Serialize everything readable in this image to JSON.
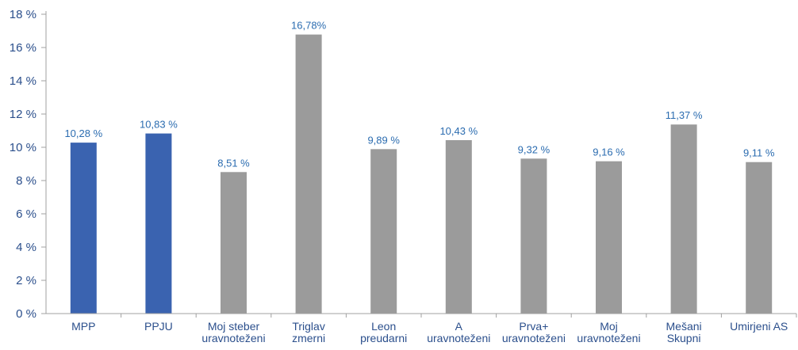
{
  "chart_data": {
    "type": "bar",
    "title": "",
    "xlabel": "",
    "ylabel": "",
    "ylim": [
      0,
      18
    ],
    "ytick_step": 2,
    "ytick_labels": [
      "0 %",
      "2 %",
      "4 %",
      "6 %",
      "8 %",
      "10 %",
      "12 %",
      "14 %",
      "16 %",
      "18 %"
    ],
    "categories": [
      [
        "MPP"
      ],
      [
        "PPJU"
      ],
      [
        "Moj steber",
        "uravnoteženi"
      ],
      [
        "Triglav",
        "zmerni"
      ],
      [
        "Leon",
        "preudarni"
      ],
      [
        "A",
        "uravnoteženi"
      ],
      [
        "Prva+",
        "uravnoteženi"
      ],
      [
        "Moj",
        "uravnoteženi"
      ],
      [
        "Mešani",
        "Skupni"
      ],
      [
        "Umirjeni AS"
      ]
    ],
    "values": [
      10.28,
      10.83,
      8.51,
      16.78,
      9.89,
      10.43,
      9.32,
      9.16,
      11.37,
      9.11
    ],
    "data_labels": [
      "10,28 %",
      "10,83 %",
      "8,51 %",
      "16,78%",
      "9,89 %",
      "10,43 %",
      "9,32 %",
      "9,16 %",
      "11,37 %",
      "9,11 %"
    ],
    "bar_colors": [
      "#3a63b0",
      "#3a63b0",
      "#9b9b9b",
      "#9b9b9b",
      "#9b9b9b",
      "#9b9b9b",
      "#9b9b9b",
      "#9b9b9b",
      "#9b9b9b",
      "#9b9b9b"
    ],
    "grid": false,
    "axis_color": "#a0a0a0",
    "label_color": "#2b4f8c",
    "data_label_color": "#2b6cb0"
  }
}
